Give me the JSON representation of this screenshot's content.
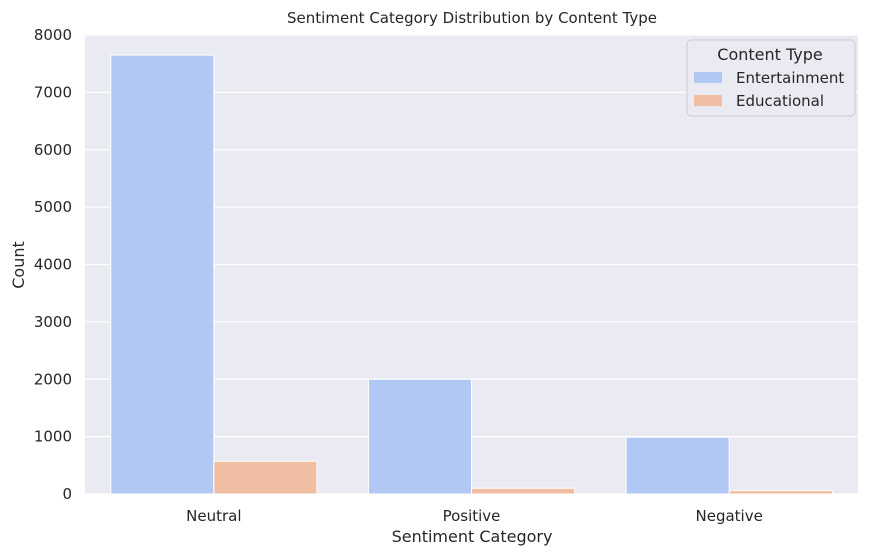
{
  "chart_data": {
    "type": "bar",
    "title": "Sentiment Category Distribution by Content Type",
    "xlabel": "Sentiment Category",
    "ylabel": "Count",
    "categories": [
      "Neutral",
      "Positive",
      "Negative"
    ],
    "series": [
      {
        "name": "Entertainment",
        "color": "#b2c8f4",
        "values": [
          7650,
          2000,
          990
        ]
      },
      {
        "name": "Educational",
        "color": "#f0bea2",
        "values": [
          570,
          100,
          60
        ]
      }
    ],
    "ylim": [
      0,
      8000
    ],
    "yticks": [
      0,
      1000,
      2000,
      3000,
      4000,
      5000,
      6000,
      7000,
      8000
    ],
    "grid": true,
    "legend": {
      "title": "Content Type",
      "position": "top-right"
    },
    "background": "#eaeaf2"
  }
}
